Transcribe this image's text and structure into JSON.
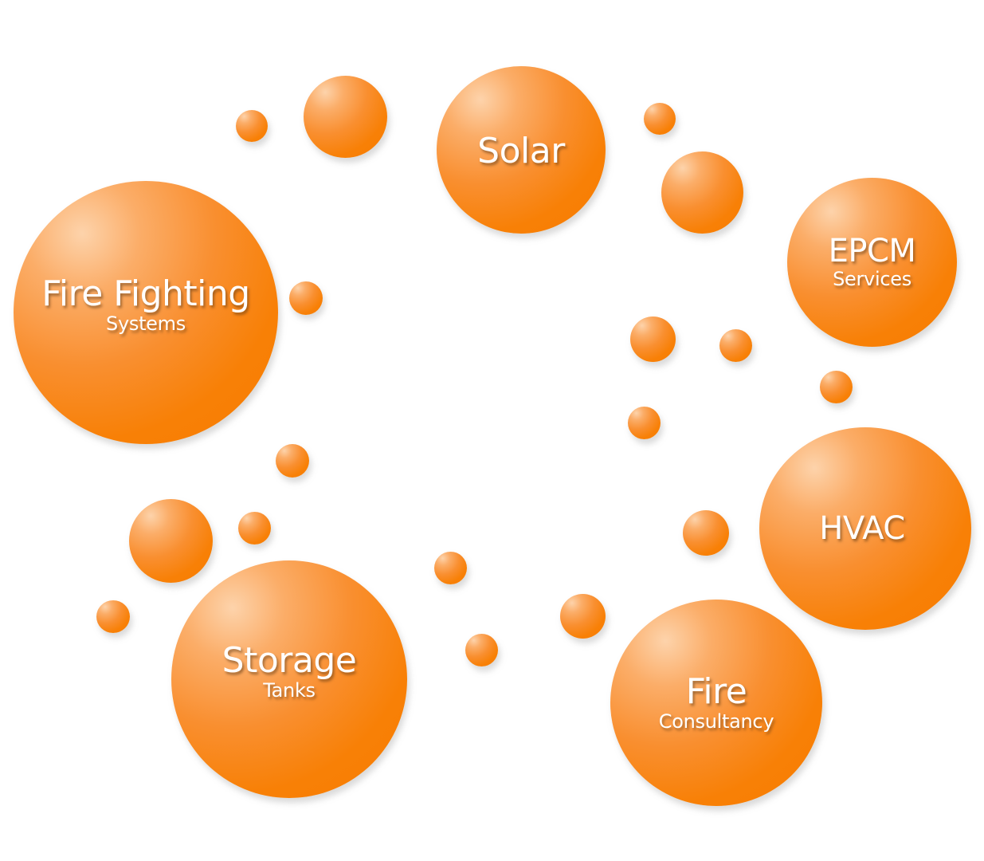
{
  "diagram": {
    "services": {
      "fire_fighting": {
        "main": "Fire Fighting",
        "sub": "Systems"
      },
      "solar": {
        "main": "Solar",
        "sub": ""
      },
      "epcm": {
        "main": "EPCM",
        "sub": "Services"
      },
      "hvac": {
        "main": "HVAC",
        "sub": ""
      },
      "storage": {
        "main": "Storage",
        "sub": "Tanks"
      },
      "fire_consultancy": {
        "main": "Fire",
        "sub": "Consultancy"
      }
    },
    "colors": {
      "bubble_base": "#f88006",
      "bubble_highlight": "#fdd3ab",
      "label_text": "#ffffff",
      "background": "#ffffff"
    }
  }
}
